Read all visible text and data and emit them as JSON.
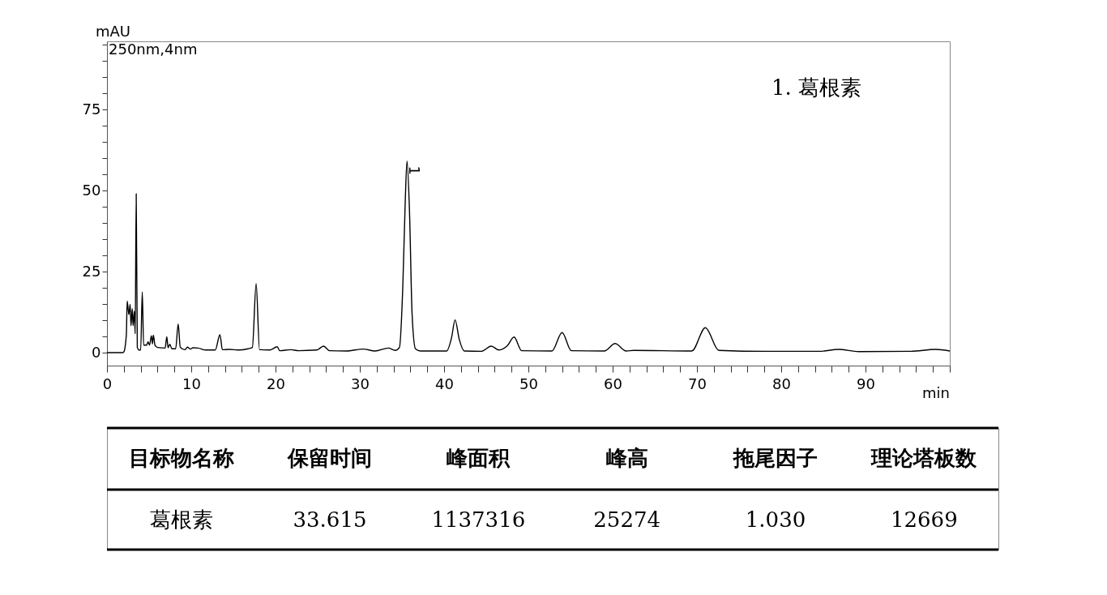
{
  "chart_data": {
    "type": "line",
    "xlabel": "min",
    "ylabel": "mAU",
    "x": [
      0,
      1.9,
      2.0,
      2.3,
      2.4,
      2.6,
      2.75,
      2.85,
      3.0,
      3.1,
      3.25,
      3.35,
      3.47,
      3.6,
      3.8,
      4.0,
      4.19,
      4.35,
      4.7,
      4.87,
      5.05,
      5.27,
      5.4,
      5.5,
      5.7,
      6.0,
      6.9,
      7.1,
      7.25,
      7.45,
      7.7,
      8.15,
      8.45,
      8.7,
      9.25,
      9.55,
      9.9,
      10.2,
      10.8,
      11.75,
      12.85,
      13.4,
      13.7,
      14.55,
      15.5,
      16.75,
      17.25,
      17.7,
      18.1,
      19.3,
      20.2,
      20.5,
      21.8,
      22.75,
      24.9,
      25.7,
      26.4,
      28.4,
      30.4,
      31.8,
      33.4,
      34.2,
      34.7,
      35.1,
      35.4,
      35.6,
      35.9,
      36.2,
      36.6,
      37.2,
      40.3,
      40.9,
      41.3,
      41.8,
      42.4,
      44.4,
      45.6,
      46.5,
      47.5,
      48.3,
      49.2,
      52.8,
      54.0,
      55.1,
      59.0,
      60.3,
      61.6,
      62.5,
      69.4,
      71.0,
      72.6,
      78.2,
      84.5,
      86.8,
      89.2,
      95.4,
      98.3,
      100
    ],
    "series": [
      {
        "color": "#000000",
        "values": [
          0,
          0,
          0.2,
          5.6,
          15.9,
          11.7,
          14.9,
          8.3,
          13.6,
          8.3,
          12.8,
          5.8,
          49.0,
          1.6,
          0.8,
          0.8,
          18.7,
          2.3,
          2.3,
          3.3,
          2.3,
          5.2,
          2.7,
          5.4,
          2.3,
          1.6,
          1.4,
          4.9,
          1.5,
          2.6,
          1.2,
          1.2,
          8.8,
          1.6,
          0.9,
          1.7,
          1.1,
          1.5,
          1.4,
          0.8,
          0.8,
          5.5,
          0.9,
          1.0,
          0.8,
          1.2,
          1.6,
          21.3,
          0.9,
          0.8,
          1.8,
          0.6,
          0.9,
          0.6,
          0.8,
          2.0,
          0.6,
          0.5,
          1.1,
          0.5,
          1.4,
          0.7,
          1.6,
          20.3,
          47.5,
          59.1,
          43.2,
          12.1,
          1.2,
          0.5,
          0.5,
          4.8,
          10.1,
          4.1,
          0.5,
          0.4,
          2.0,
          0.8,
          2.1,
          4.8,
          0.6,
          0.5,
          6.2,
          0.6,
          0.5,
          2.8,
          0.5,
          0.7,
          0.5,
          7.7,
          0.7,
          0.4,
          0.4,
          1.0,
          0.3,
          0.4,
          1.0,
          0.5
        ]
      }
    ],
    "xlim": [
      0,
      100
    ],
    "xticks": [
      0,
      {
        "value": 2,
        "label": null
      },
      {
        "value": 4,
        "label": null
      },
      {
        "value": 6,
        "label": null
      },
      {
        "value": 8,
        "label": null
      },
      10,
      {
        "value": 12,
        "label": null
      },
      {
        "value": 14,
        "label": null
      },
      {
        "value": 16,
        "label": null
      },
      {
        "value": 18,
        "label": null
      },
      20,
      {
        "value": 22,
        "label": null
      },
      {
        "value": 24,
        "label": null
      },
      {
        "value": 26,
        "label": null
      },
      {
        "value": 28,
        "label": null
      },
      30,
      {
        "value": 32,
        "label": null
      },
      {
        "value": 34,
        "label": null
      },
      {
        "value": 36,
        "label": null
      },
      {
        "value": 38,
        "label": null
      },
      40,
      {
        "value": 42,
        "label": null
      },
      {
        "value": 44,
        "label": null
      },
      {
        "value": 46,
        "label": null
      },
      {
        "value": 48,
        "label": null
      },
      50,
      {
        "value": 52,
        "label": null
      },
      {
        "value": 54,
        "label": null
      },
      {
        "value": 56,
        "label": null
      },
      {
        "value": 58,
        "label": null
      },
      60,
      {
        "value": 62,
        "label": null
      },
      {
        "value": 64,
        "label": null
      },
      {
        "value": 66,
        "label": null
      },
      {
        "value": 68,
        "label": null
      },
      70,
      {
        "value": 72,
        "label": null
      },
      {
        "value": 74,
        "label": null
      },
      {
        "value": 76,
        "label": null
      },
      {
        "value": 78,
        "label": null
      },
      80,
      {
        "value": 82,
        "label": null
      },
      {
        "value": 84,
        "label": null
      },
      {
        "value": 86,
        "label": null
      },
      {
        "value": 88,
        "label": null
      },
      90,
      {
        "value": 92,
        "label": null
      },
      {
        "value": 94,
        "label": null
      },
      {
        "value": 96,
        "label": null
      },
      {
        "value": 98,
        "label": null
      },
      {
        "value": 100,
        "label": null
      }
    ],
    "ylim": [
      -4,
      96
    ],
    "yticks": [
      0,
      {
        "value": 5,
        "label": null
      },
      {
        "value": 10,
        "label": null
      },
      {
        "value": 15,
        "label": null
      },
      {
        "value": 20,
        "label": null
      },
      25,
      {
        "value": 30,
        "label": null
      },
      {
        "value": 35,
        "label": null
      },
      {
        "value": 40,
        "label": null
      },
      {
        "value": 45,
        "label": null
      },
      50,
      {
        "value": 55,
        "label": null
      },
      {
        "value": 60,
        "label": null
      },
      {
        "value": 65,
        "label": null
      },
      {
        "value": 70,
        "label": null
      },
      75,
      {
        "value": 80,
        "label": null
      },
      {
        "value": 85,
        "label": null
      },
      {
        "value": 90,
        "label": null
      },
      {
        "value": 95,
        "label": null
      }
    ],
    "grid": false,
    "marker": "none",
    "line_style": "solid",
    "annotations": [
      "250nm,4nm",
      "1.   葛根素",
      {
        "text": "1",
        "x": 35.6,
        "y": 59.1
      },
      "目标物名称",
      "保留时间",
      "峰面积",
      "峰高",
      "拖尾因子",
      "理论塔板数",
      "葛根素",
      "33.615",
      "1137316",
      "25274",
      "1.030",
      "12669"
    ]
  }
}
